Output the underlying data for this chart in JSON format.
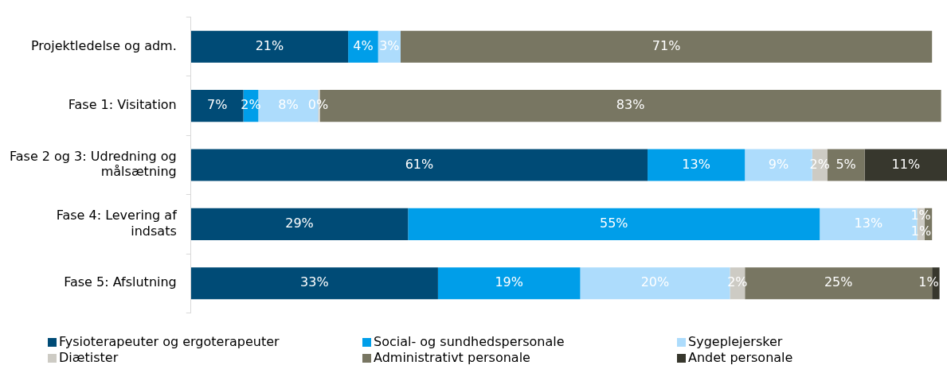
{
  "chart_data": {
    "type": "bar",
    "orientation": "horizontal",
    "stacked": true,
    "legend": "bottom",
    "grid": false,
    "tick_labels": "y",
    "categories": [
      "Projektledelse og adm.",
      "Fase 1: Visitation",
      "Fase 2 og 3: Udredning og målsætning",
      "Fase 4: Levering af indsats",
      "Fase 5: Afslutning"
    ],
    "series": [
      {
        "name": "Fysioterapeuter og ergoterapeuter",
        "color": "#004b76",
        "values": [
          21,
          7,
          61,
          29,
          33
        ],
        "value_labels": [
          "21%",
          "7%",
          "61%",
          "29%",
          "33%"
        ]
      },
      {
        "name": "Social- og sundhedspersonale",
        "color": "#009ee9",
        "values": [
          4,
          2,
          13,
          55,
          19
        ],
        "value_labels": [
          "4%",
          "2%",
          "13%",
          "55%",
          "19%"
        ]
      },
      {
        "name": "Sygeplejersker",
        "color": "#addcfc",
        "values": [
          3,
          8,
          9,
          13,
          20
        ],
        "value_labels": [
          "3%",
          "8%",
          "9%",
          "13%",
          "20%"
        ]
      },
      {
        "name": "Diætister",
        "color": "#cdcbc4",
        "values": [
          null,
          0,
          2,
          1,
          2
        ],
        "value_labels": [
          null,
          "0%",
          "2%",
          "1%",
          "2%"
        ]
      },
      {
        "name": "Administrativt personale",
        "color": "#787662",
        "values": [
          71,
          83,
          5,
          1,
          25
        ],
        "value_labels": [
          "71%",
          "83%",
          "5%",
          "1%",
          "25%"
        ]
      },
      {
        "name": "Andet personale",
        "color": "#37372d",
        "values": [
          null,
          null,
          11,
          null,
          1
        ],
        "value_labels": [
          null,
          null,
          "11%",
          null,
          "1%"
        ]
      }
    ]
  }
}
